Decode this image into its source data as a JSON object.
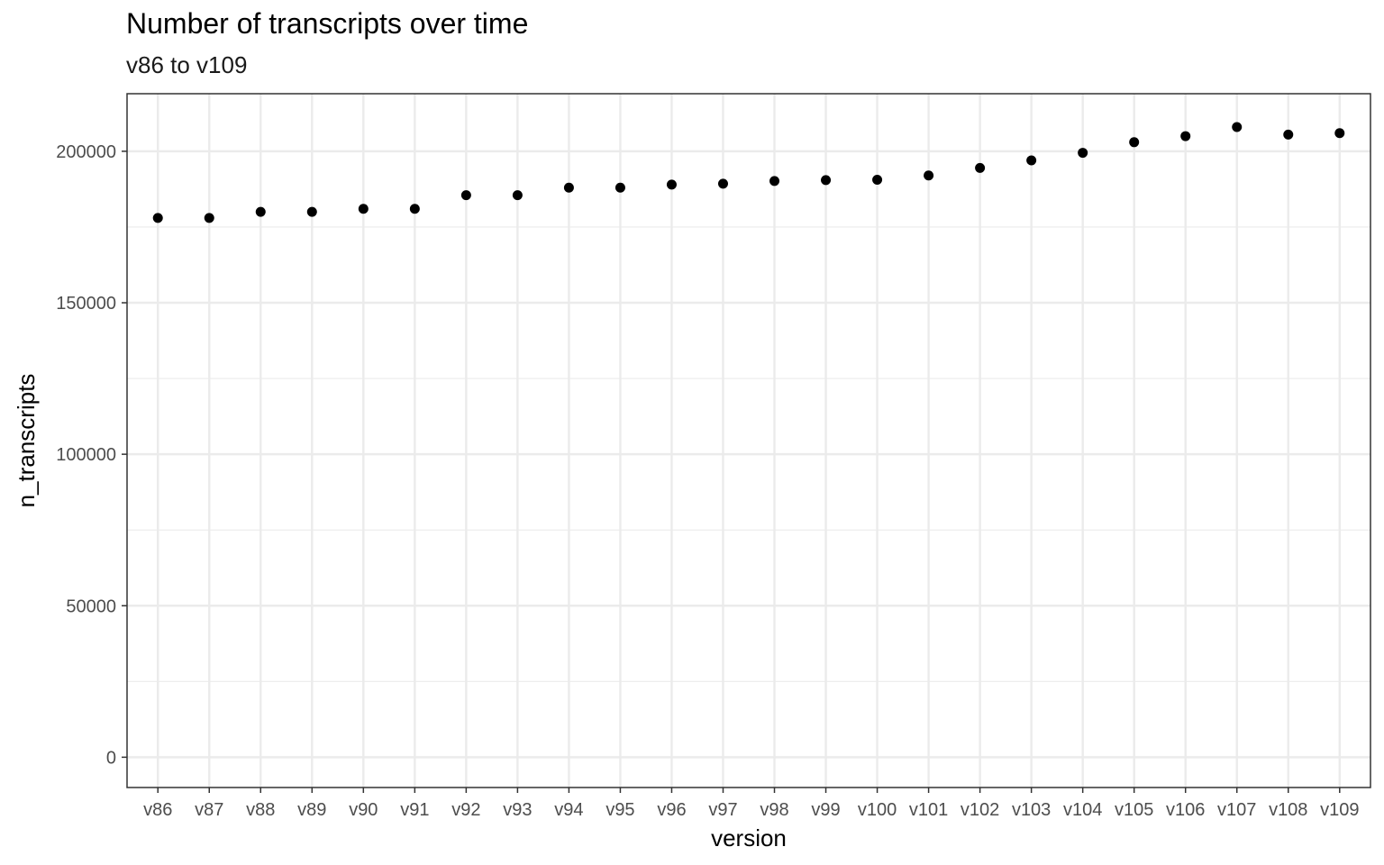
{
  "chart_data": {
    "type": "scatter",
    "title": "Number of transcripts over time",
    "subtitle": "v86 to v109",
    "xlabel": "version",
    "ylabel": "n_transcripts",
    "categories": [
      "v86",
      "v87",
      "v88",
      "v89",
      "v90",
      "v91",
      "v92",
      "v93",
      "v94",
      "v95",
      "v96",
      "v97",
      "v98",
      "v99",
      "v100",
      "v101",
      "v102",
      "v103",
      "v104",
      "v105",
      "v106",
      "v107",
      "v108",
      "v109"
    ],
    "values": [
      178000,
      178000,
      180000,
      180000,
      181000,
      181000,
      185500,
      185500,
      188000,
      188000,
      189000,
      189300,
      190200,
      190500,
      190600,
      192000,
      194500,
      197000,
      199500,
      203000,
      205000,
      208000,
      205500,
      206000
    ],
    "yticks": [
      0,
      50000,
      100000,
      150000,
      200000
    ],
    "ytick_labels": [
      "0",
      "50000",
      "100000",
      "150000",
      "200000"
    ],
    "ylim": [
      -10000,
      219000
    ],
    "grid": true,
    "point_color": "#000000",
    "grid_color": "#ebebeb"
  }
}
